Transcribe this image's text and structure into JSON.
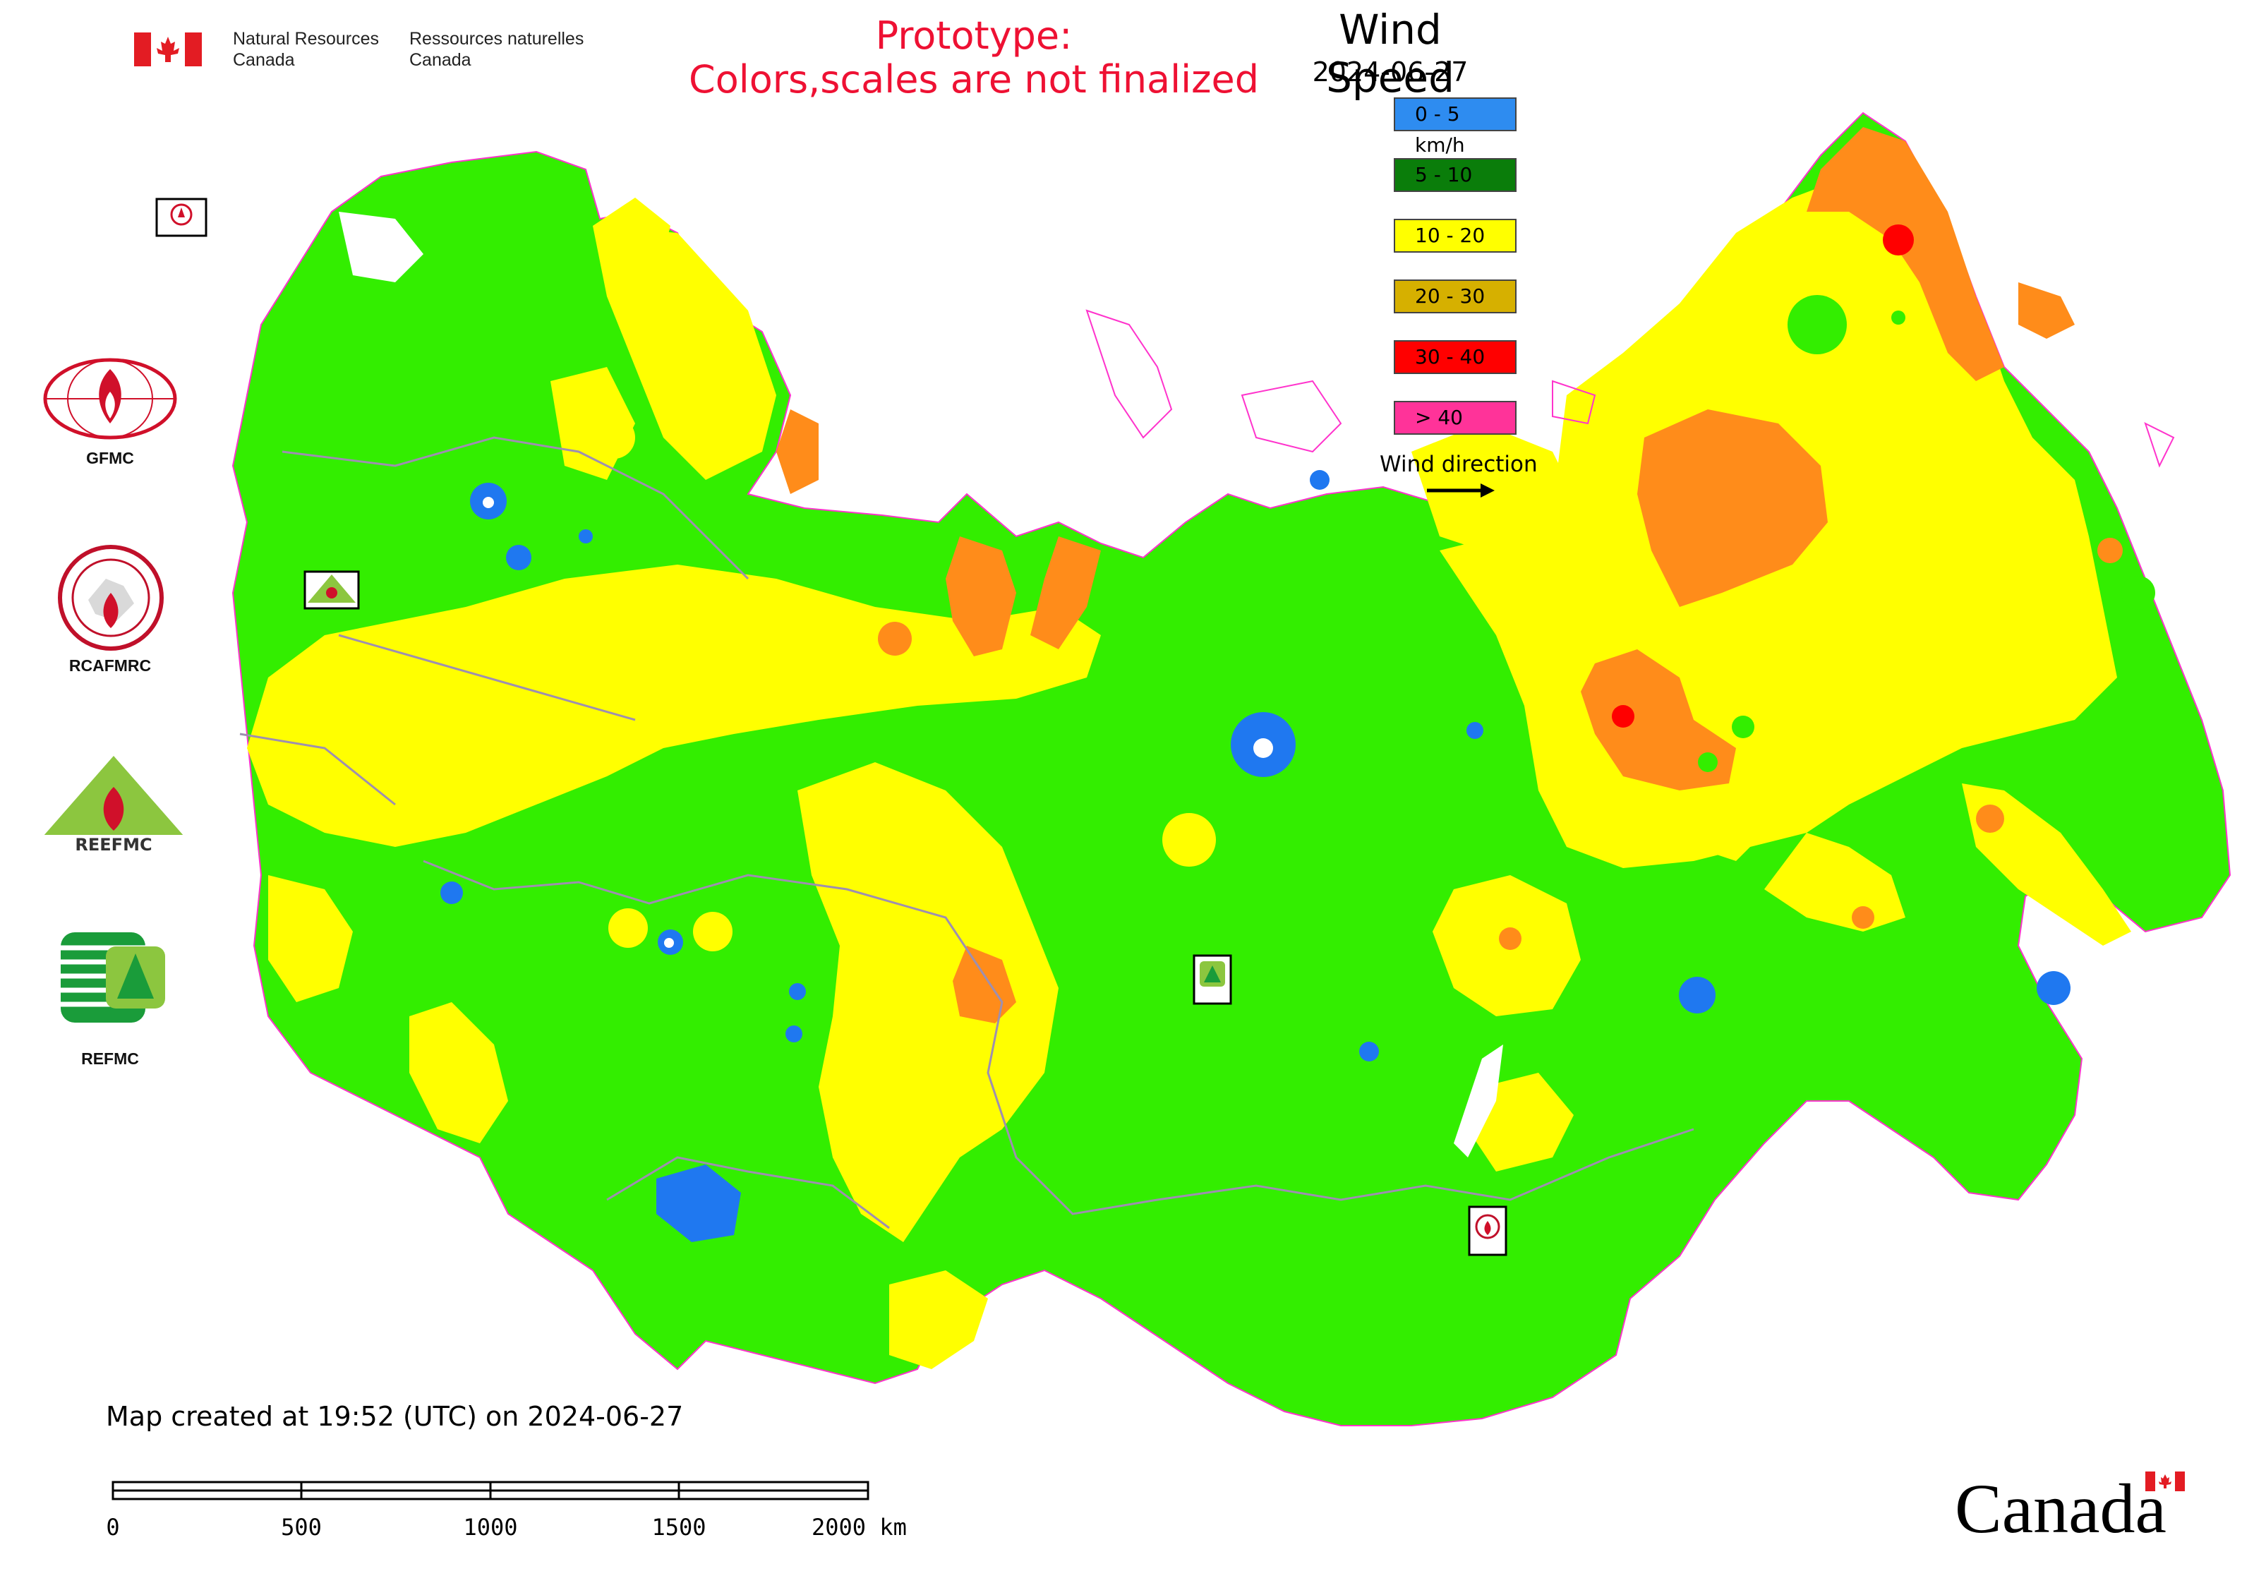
{
  "header": {
    "nrcan_en": "Natural Resources\nCanada",
    "nrcan_fr": "Ressources naturelles\nCanada",
    "prototype_line1": "Prototype:",
    "prototype_line2": "Colors,scales are not finalized"
  },
  "legend": {
    "title": "Wind Speed",
    "date": "2024-06-27",
    "classes": [
      {
        "label": "0 - 5 km/h",
        "color": "#2e8cf0"
      },
      {
        "label": "5 - 10",
        "color": "#0a7d0a"
      },
      {
        "label": "10 - 20",
        "color": "#ffff00"
      },
      {
        "label": "20 - 30",
        "color": "#d6b000"
      },
      {
        "label": "30 - 40",
        "color": "#ff0000"
      },
      {
        "label": "> 40",
        "color": "#ff3399"
      }
    ],
    "wind_direction_label": "Wind direction"
  },
  "map_colors": {
    "green": "#33ee00",
    "yellow": "#ffff00",
    "orange": "#ff8c1a",
    "red": "#ff0000",
    "blue": "#1f78f0",
    "border": "#9e8fb0",
    "coast": "#ff33cc"
  },
  "logos": {
    "gfmc": "GFMC",
    "rcafmrc": "RCAFMRC",
    "reefmc": "REEFMC",
    "refmc": "REFMC"
  },
  "footer": {
    "created": "Map created at 19:52 (UTC) on 2024-06-27",
    "scale_labels": [
      "0",
      "500",
      "1000",
      "1500",
      "2000 km"
    ],
    "wordmark": "Canada"
  }
}
